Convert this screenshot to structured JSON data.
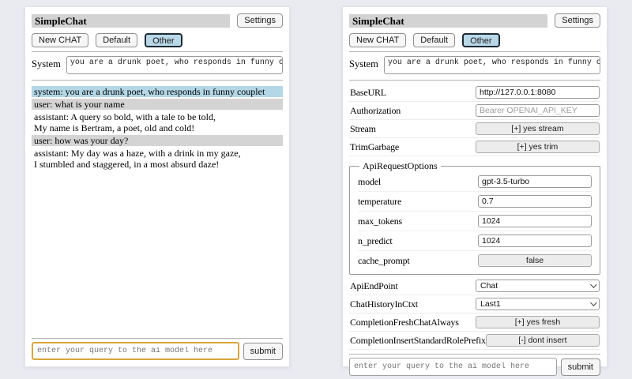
{
  "app": {
    "title": "SimpleChat",
    "settings_button": "Settings",
    "sessions": {
      "new_chat": "New CHAT",
      "default": "Default",
      "other": "Other"
    },
    "selected_session": "Other",
    "system_label": "System",
    "system_prompt": "you are a drunk poet, who responds in funny couplet",
    "query_placeholder": "enter your query to the ai model here",
    "submit_label": "submit"
  },
  "chat": {
    "messages": [
      {
        "role": "system",
        "text": "system: you are a drunk poet, who responds in funny couplet"
      },
      {
        "role": "user",
        "text": "user: what is your name"
      },
      {
        "role": "assistant",
        "text": "assistant: A query so bold, with a tale to be told,\nMy name is Bertram, a poet, old and cold!"
      },
      {
        "role": "user",
        "text": "user: how was your day?"
      },
      {
        "role": "assistant",
        "text": "assistant: My day was a haze, with a drink in my gaze,\nI stumbled and staggered, in a most absurd daze!"
      }
    ]
  },
  "settings": {
    "baseurl_label": "BaseURL",
    "baseurl_value": "http://127.0.0.1:8080",
    "authorization_label": "Authorization",
    "authorization_placeholder": "Bearer OPENAI_API_KEY",
    "stream_label": "Stream",
    "stream_button": "[+] yes stream",
    "trimgarbage_label": "TrimGarbage",
    "trimgarbage_button": "[+] yes trim",
    "fieldset_legend": "ApiRequestOptions",
    "model_label": "model",
    "model_value": "gpt-3.5-turbo",
    "temperature_label": "temperature",
    "temperature_value": "0.7",
    "max_tokens_label": "max_tokens",
    "max_tokens_value": "1024",
    "n_predict_label": "n_predict",
    "n_predict_value": "1024",
    "cache_prompt_label": "cache_prompt",
    "cache_prompt_button": "false",
    "apiendpoint_label": "ApiEndPoint",
    "apiendpoint_value": "Chat",
    "chathistory_label": "ChatHistoryInCtxt",
    "chathistory_value": "Last1",
    "freshchat_label": "CompletionFreshChatAlways",
    "freshchat_button": "[+] yes fresh",
    "roleprefix_label": "CompletionInsertStandardRolePrefix",
    "roleprefix_button": "[-] dont insert"
  },
  "colors": {
    "page_background": "#e9ebf1",
    "titlebar_background": "#d3d3d3",
    "selected_session_background": "#b9d8e7",
    "system_message_background": "#b3d7e6",
    "user_message_background": "#d4d4d4",
    "query_focus_border": "#d8a63c"
  }
}
